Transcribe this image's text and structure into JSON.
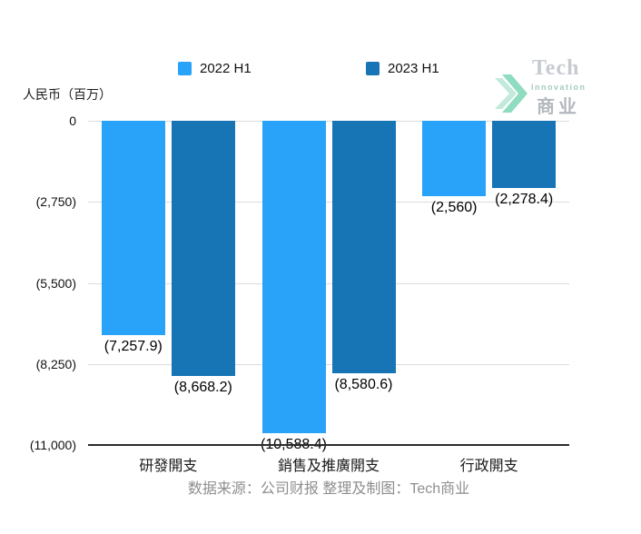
{
  "y_axis_title": "人民币（百万）",
  "legend": {
    "items": [
      {
        "label": "2022 H1",
        "color": "#29A2F9"
      },
      {
        "label": "2023 H1",
        "color": "#1774B5"
      }
    ]
  },
  "watermark": {
    "brand": "Tech",
    "sub": "Innovation",
    "cjk": "商业",
    "arrow_color": "#8FDCC0",
    "arrow_color_light": "#C2EADB"
  },
  "footer": {
    "text": "数据来源：公司财报 整理及制图：Tech商业"
  },
  "chart_data": {
    "type": "bar",
    "title": "",
    "ylabel": "人民币（百万）",
    "xlabel": "",
    "categories": [
      "研發開支",
      "銷售及推廣開支",
      "行政開支"
    ],
    "series": [
      {
        "name": "2022 H1",
        "color": "#29A2F9",
        "values": [
          -7257.9,
          -10588.4,
          -2560
        ]
      },
      {
        "name": "2023 H1",
        "color": "#1774B5",
        "values": [
          -8668.2,
          -8580.6,
          -2278.4
        ]
      }
    ],
    "value_labels": [
      [
        "(7,257.9)",
        "(10,588.4)",
        "(2,560)"
      ],
      [
        "(8,668.2)",
        "(8,580.6)",
        "(2,278.4)"
      ]
    ],
    "y_ticks": [
      {
        "value": 0,
        "label": "0"
      },
      {
        "value": -2750,
        "label": "(2,750)"
      },
      {
        "value": -5500,
        "label": "(5,500)"
      },
      {
        "value": -8250,
        "label": "(8,250)"
      },
      {
        "value": -11000,
        "label": "(11,000)"
      }
    ],
    "ylim": [
      -11000,
      0
    ],
    "grid": true,
    "legend_position": "top"
  }
}
